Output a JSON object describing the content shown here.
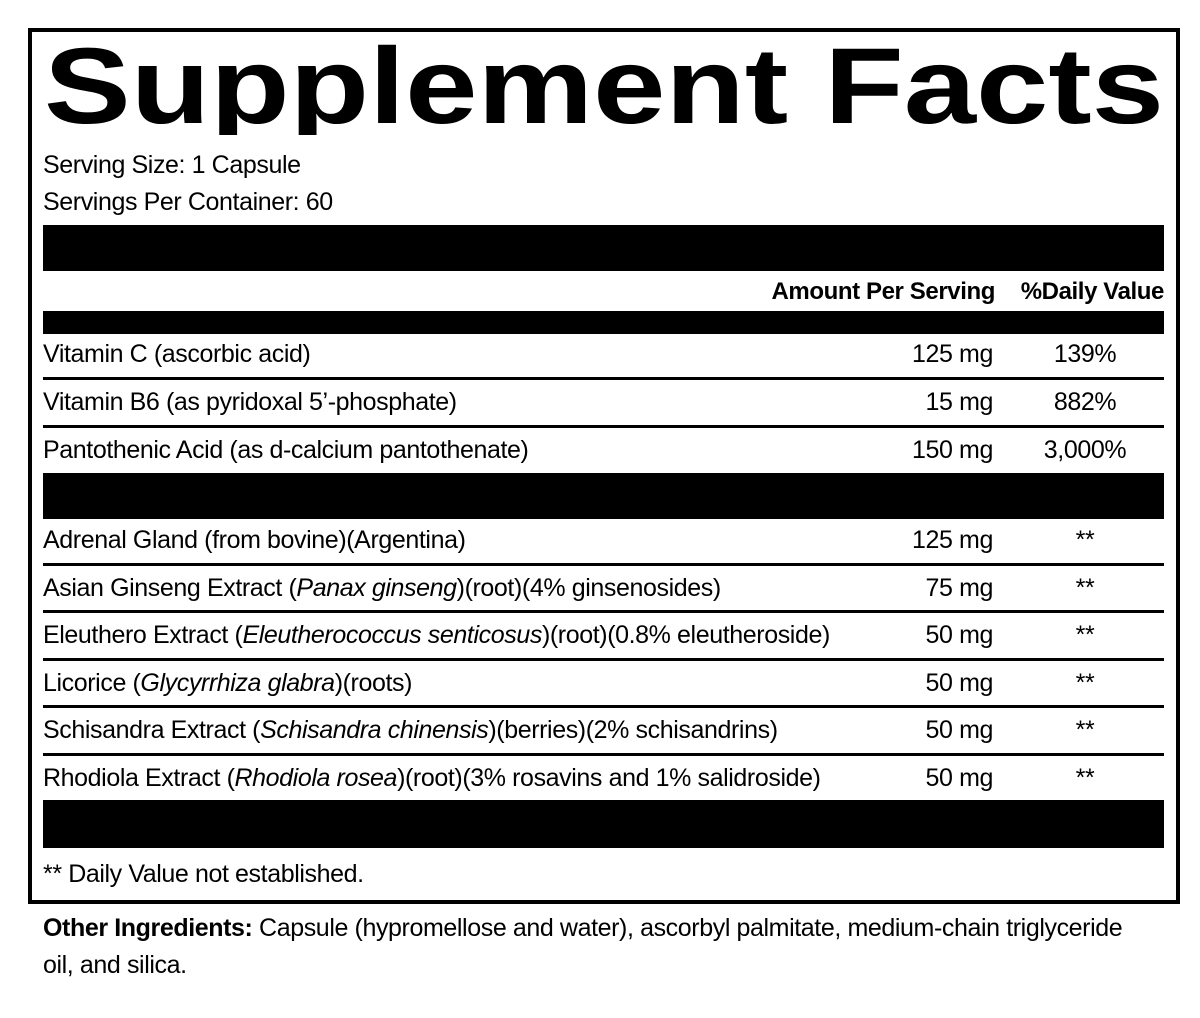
{
  "title": "Supplement Facts",
  "serving_size": "Serving Size: 1 Capsule",
  "servings_per_container": "Servings Per Container: 60",
  "header": {
    "amount": "Amount Per Serving",
    "daily_value": "%Daily Value"
  },
  "vitamins": [
    {
      "name": [
        {
          "text": "Vitamin C (ascorbic acid)",
          "italic": false
        }
      ],
      "amount": "125 mg",
      "daily_value": "139%"
    },
    {
      "name": [
        {
          "text": "Vitamin B6 (as pyridoxal 5’-phosphate)",
          "italic": false
        }
      ],
      "amount": "15 mg",
      "daily_value": "882%"
    },
    {
      "name": [
        {
          "text": "Pantothenic Acid (as d-calcium pantothenate)",
          "italic": false
        }
      ],
      "amount": "150 mg",
      "daily_value": "3,000%"
    }
  ],
  "ingredients": [
    {
      "name": [
        {
          "text": "Adrenal Gland (from bovine)(Argentina)",
          "italic": false
        }
      ],
      "amount": "125 mg",
      "daily_value": "**"
    },
    {
      "name": [
        {
          "text": "Asian Ginseng Extract (",
          "italic": false
        },
        {
          "text": "Panax ginseng",
          "italic": true
        },
        {
          "text": ")(root)(4% ginsenosides)",
          "italic": false
        }
      ],
      "amount": "75 mg",
      "daily_value": "**"
    },
    {
      "name": [
        {
          "text": "Eleuthero Extract (",
          "italic": false
        },
        {
          "text": "Eleutherococcus senticosus",
          "italic": true
        },
        {
          "text": ")(root)(0.8% eleutheroside)",
          "italic": false
        }
      ],
      "amount": "50 mg",
      "daily_value": "**"
    },
    {
      "name": [
        {
          "text": "Licorice (",
          "italic": false
        },
        {
          "text": "Glycyrrhiza glabra",
          "italic": true
        },
        {
          "text": ")(roots)",
          "italic": false
        }
      ],
      "amount": "50 mg",
      "daily_value": "**"
    },
    {
      "name": [
        {
          "text": "Schisandra Extract (",
          "italic": false
        },
        {
          "text": "Schisandra chinensis",
          "italic": true
        },
        {
          "text": ")(berries)(2% schisandrins)",
          "italic": false
        }
      ],
      "amount": "50 mg",
      "daily_value": "**"
    },
    {
      "name": [
        {
          "text": "Rhodiola Extract (",
          "italic": false
        },
        {
          "text": "Rhodiola rosea",
          "italic": true
        },
        {
          "text": ")(root)(3% rosavins and 1% salidroside)",
          "italic": false
        }
      ],
      "amount": "50 mg",
      "daily_value": "**"
    }
  ],
  "footnote": "** Daily Value not established.",
  "other_ingredients": {
    "label": "Other Ingredients:",
    "text": "Capsule (hypromellose and water), ascorbyl palmitate, medium-chain triglyceride oil, and silica."
  }
}
